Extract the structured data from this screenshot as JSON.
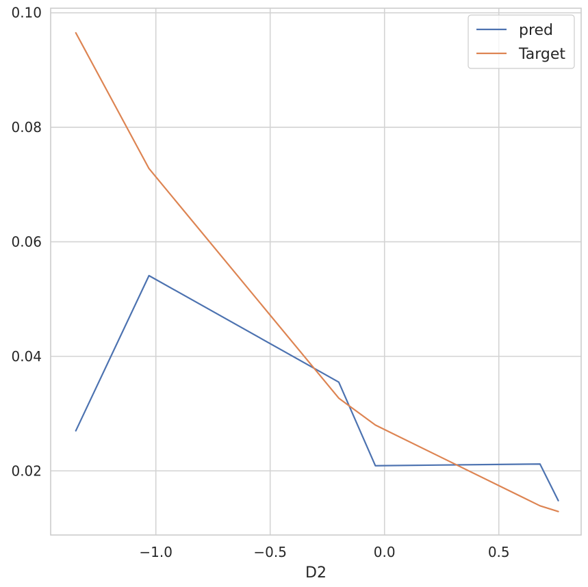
{
  "chart_data": {
    "type": "line",
    "title": "",
    "xlabel": "D2",
    "ylabel": "",
    "xlim": [
      -1.46,
      0.86
    ],
    "ylim": [
      0.0088,
      0.1008
    ],
    "grid": true,
    "legend_position": "top-right",
    "x_ticks": [
      {
        "value": -1.0,
        "label": "−1.0"
      },
      {
        "value": -0.5,
        "label": "−0.5"
      },
      {
        "value": 0.0,
        "label": "0.0"
      },
      {
        "value": 0.5,
        "label": "0.5"
      }
    ],
    "y_ticks": [
      {
        "value": 0.02,
        "label": "0.02"
      },
      {
        "value": 0.04,
        "label": "0.04"
      },
      {
        "value": 0.06,
        "label": "0.06"
      },
      {
        "value": 0.08,
        "label": "0.08"
      },
      {
        "value": 0.1,
        "label": "0.10"
      }
    ],
    "series": [
      {
        "name": "pred",
        "color": "#4c72b0",
        "x": [
          -1.35,
          -1.03,
          -0.2,
          -0.04,
          0.68,
          0.76
        ],
        "y": [
          0.027,
          0.0541,
          0.0355,
          0.0209,
          0.0212,
          0.0148
        ]
      },
      {
        "name": "Target",
        "color": "#dd8452",
        "x": [
          -1.35,
          -1.03,
          -0.2,
          -0.04,
          0.68,
          0.76
        ],
        "y": [
          0.0965,
          0.0728,
          0.0327,
          0.028,
          0.0139,
          0.0129
        ]
      }
    ]
  },
  "colors": {
    "grid": "#d3d3d3",
    "spine": "#cccccc",
    "legend_border": "#cccccc",
    "text": "#262626"
  }
}
